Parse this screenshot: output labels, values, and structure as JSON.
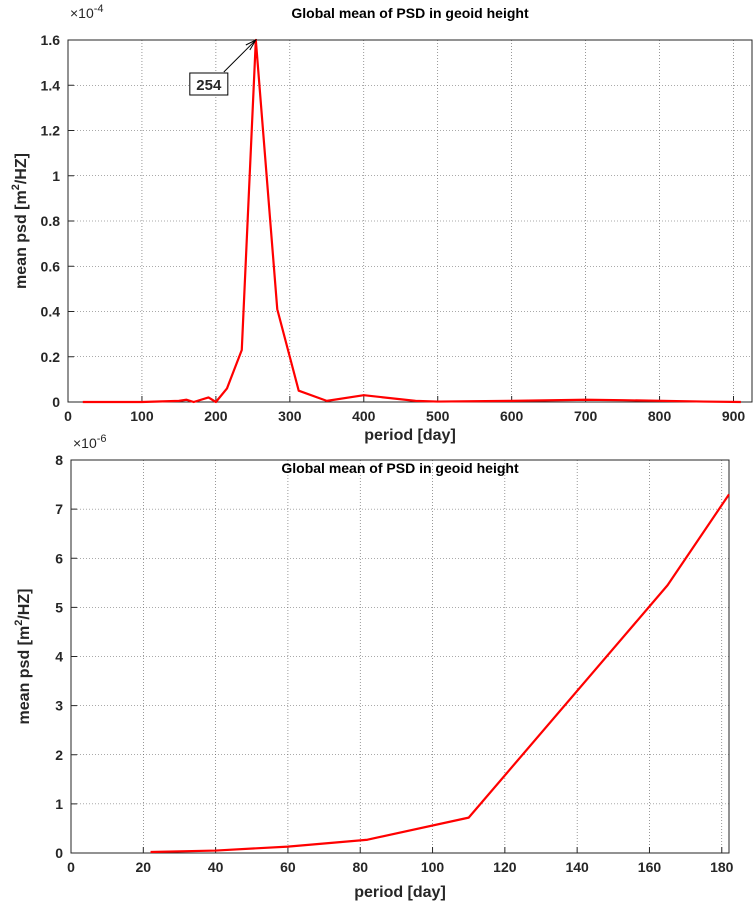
{
  "chart_data": [
    {
      "type": "line",
      "title": "Global mean  of PSD in geoid height",
      "xlabel": "period [day]",
      "ylabel": [
        "mean psd [m",
        "2",
        "/HZ]"
      ],
      "y_multiplier": [
        "×10",
        "-4"
      ],
      "x": [
        20,
        100,
        150,
        160,
        170,
        190,
        200,
        215,
        235,
        254,
        283,
        312,
        350,
        400,
        470,
        500,
        600,
        700,
        750,
        860,
        910
      ],
      "values": [
        0,
        0,
        0.005,
        0.01,
        0,
        0.02,
        0,
        0.06,
        0.23,
        1.6,
        0.41,
        0.05,
        0.005,
        0.03,
        0.005,
        0.002,
        0.005,
        0.01,
        0.008,
        0.002,
        0
      ],
      "color": "#ff0000",
      "xlim": [
        0,
        925
      ],
      "ylim": [
        0,
        1.6
      ],
      "xticks": [
        0,
        100,
        200,
        300,
        400,
        500,
        600,
        700,
        800,
        900
      ],
      "yticks": [
        0,
        0.2,
        0.4,
        0.6,
        0.8,
        1,
        1.2,
        1.4,
        1.6
      ],
      "grid": true,
      "annotation": {
        "text": "254",
        "x": 254,
        "y": 1.6
      }
    },
    {
      "type": "line",
      "title": "Global mean  of PSD in geoid height",
      "xlabel": "period [day]",
      "ylabel": [
        "mean psd [m",
        "2",
        "/HZ]"
      ],
      "y_multiplier": [
        "×10",
        "-6"
      ],
      "x": [
        22,
        40,
        60,
        82,
        110,
        165,
        182
      ],
      "values": [
        0.02,
        0.05,
        0.13,
        0.27,
        0.72,
        5.45,
        7.3
      ],
      "color": "#ff0000",
      "xlim": [
        0,
        182
      ],
      "ylim": [
        0,
        8
      ],
      "xticks": [
        0,
        20,
        40,
        60,
        80,
        100,
        120,
        140,
        160,
        180
      ],
      "yticks": [
        0,
        1,
        2,
        3,
        4,
        5,
        6,
        7,
        8
      ],
      "grid": true
    }
  ]
}
